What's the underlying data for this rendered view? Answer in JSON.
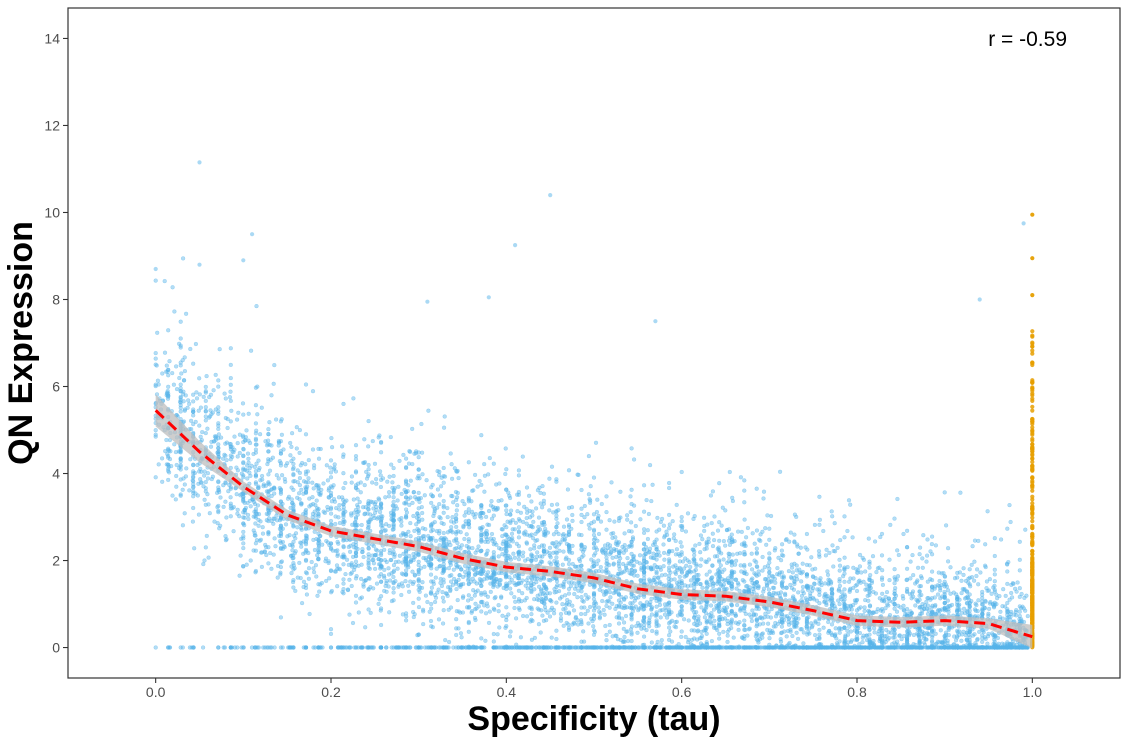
{
  "chart_data": {
    "type": "scatter",
    "title": "",
    "xlabel": "Specificity (tau)",
    "ylabel": "QN Expression",
    "xlim": [
      -0.1,
      1.1
    ],
    "ylim": [
      -0.7,
      14.7
    ],
    "x_ticks": [
      0.0,
      0.2,
      0.4,
      0.6,
      0.8,
      1.0
    ],
    "x_tick_labels": [
      "0.0",
      "0.2",
      "0.4",
      "0.6",
      "0.8",
      "1.0"
    ],
    "y_ticks": [
      0,
      2,
      4,
      6,
      8,
      10,
      12,
      14
    ],
    "y_tick_labels": [
      "0",
      "2",
      "4",
      "6",
      "8",
      "10",
      "12",
      "14"
    ],
    "grid": false,
    "legend": "none",
    "annotation": "r = -0.59",
    "colors": {
      "points": "#56B4E9",
      "tau_one_points": "#E69F00",
      "smooth_line": "#FF0000",
      "confidence_band": "#BEBEBE"
    },
    "series": [
      {
        "kind": "smooth",
        "x": [
          0.0,
          0.05,
          0.1,
          0.15,
          0.2,
          0.25,
          0.3,
          0.35,
          0.4,
          0.45,
          0.5,
          0.55,
          0.6,
          0.65,
          0.7,
          0.75,
          0.8,
          0.85,
          0.9,
          0.95,
          1.0
        ],
        "y": [
          5.45,
          4.5,
          3.7,
          3.05,
          2.68,
          2.5,
          2.32,
          2.05,
          1.85,
          1.75,
          1.6,
          1.35,
          1.22,
          1.18,
          1.05,
          0.85,
          0.62,
          0.58,
          0.62,
          0.55,
          0.25
        ]
      },
      {
        "kind": "outliers",
        "points": [
          [
            0.05,
            11.15
          ],
          [
            0.45,
            10.4
          ],
          [
            0.11,
            9.5
          ],
          [
            0.1,
            8.9
          ],
          [
            0.05,
            8.8
          ],
          [
            0.41,
            9.25
          ],
          [
            0.0,
            8.7
          ],
          [
            0.99,
            9.75
          ],
          [
            1.0,
            9.95
          ],
          [
            1.0,
            8.95
          ],
          [
            1.0,
            8.1
          ],
          [
            0.94,
            8.0
          ],
          [
            0.31,
            7.95
          ],
          [
            0.38,
            8.05
          ],
          [
            0.57,
            7.5
          ]
        ]
      },
      {
        "kind": "cloud",
        "description_free": true,
        "n_points": 7000,
        "x_range": [
          0.0,
          1.0
        ],
        "y_min": 0
      }
    ]
  }
}
